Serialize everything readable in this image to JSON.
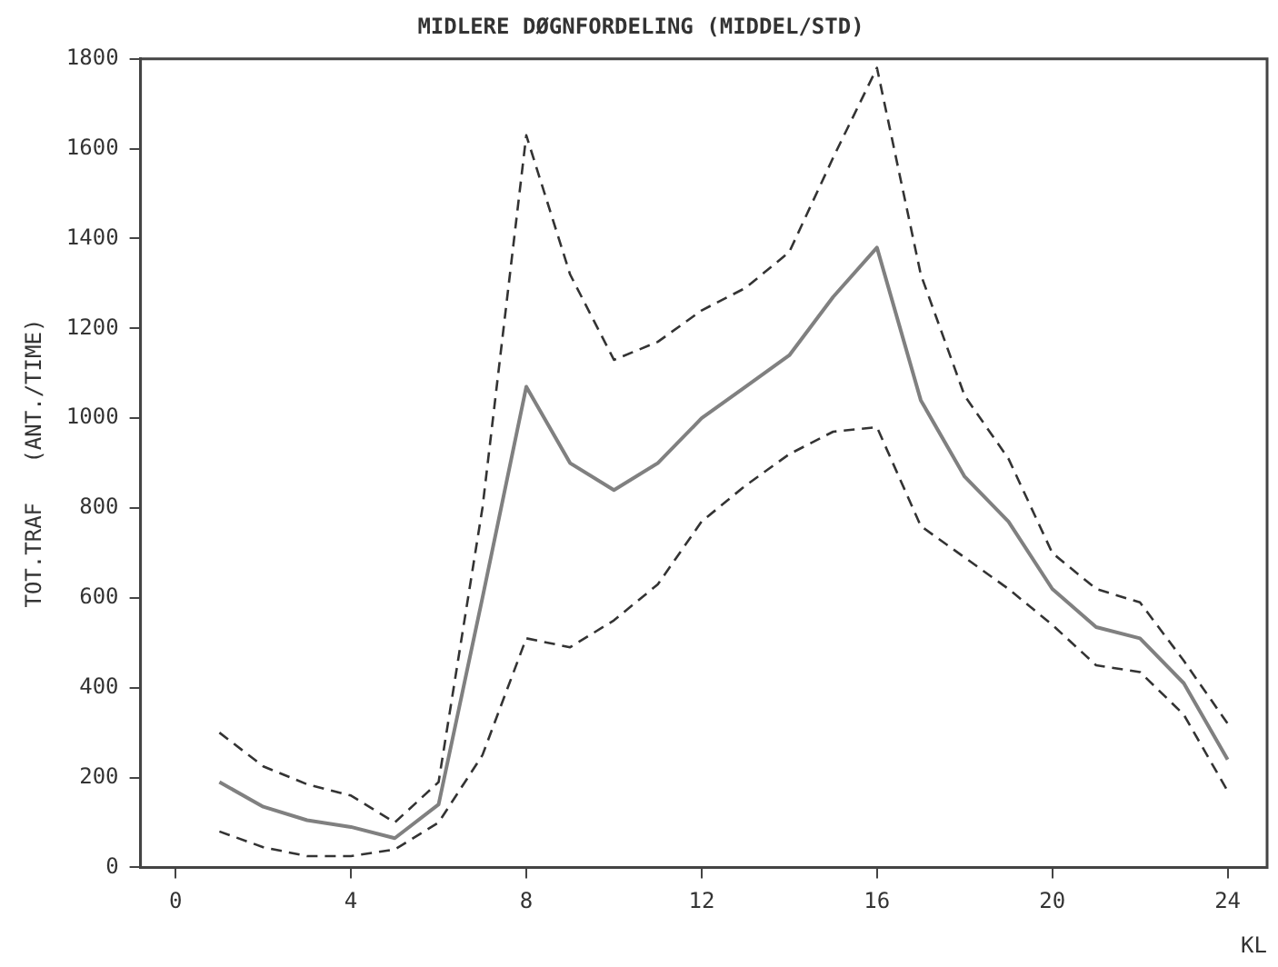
{
  "chart_data": {
    "type": "line",
    "title": "MIDLERE DØGNFORDELING (MIDDEL/STD)",
    "xlabel": "KL",
    "ylabel": "TOT.TRAF   (ANT./TIME)",
    "x": [
      1,
      2,
      3,
      4,
      5,
      6,
      7,
      8,
      9,
      10,
      11,
      12,
      13,
      14,
      15,
      16,
      17,
      18,
      19,
      20,
      21,
      22,
      23,
      24
    ],
    "series": [
      {
        "color": "#808080",
        "line_style": "solid",
        "values": [
          190,
          135,
          105,
          90,
          65,
          140,
          600,
          1070,
          900,
          840,
          900,
          1000,
          1070,
          1140,
          1270,
          1380,
          1040,
          870,
          770,
          620,
          535,
          510,
          410,
          240
        ]
      },
      {
        "color": "#333333",
        "line_style": "dashed",
        "values": [
          300,
          225,
          185,
          160,
          100,
          190,
          800,
          1630,
          1320,
          1130,
          1170,
          1240,
          1290,
          1370,
          1580,
          1780,
          1320,
          1050,
          910,
          700,
          620,
          590,
          460,
          320
        ]
      },
      {
        "color": "#333333",
        "line_style": "dashed",
        "values": [
          80,
          45,
          25,
          25,
          40,
          100,
          250,
          510,
          490,
          550,
          630,
          770,
          850,
          920,
          970,
          980,
          760,
          690,
          620,
          540,
          450,
          435,
          340,
          170
        ]
      }
    ],
    "xlim": [
      -0.8,
      24.9
    ],
    "xticks": [
      0,
      4,
      8,
      12,
      16,
      20,
      24
    ],
    "ylim": [
      0,
      1800
    ],
    "yticks": [
      0,
      200,
      400,
      600,
      800,
      1000,
      1200,
      1400,
      1600,
      1800
    ],
    "grid": false,
    "legend": false,
    "marker": "none"
  }
}
